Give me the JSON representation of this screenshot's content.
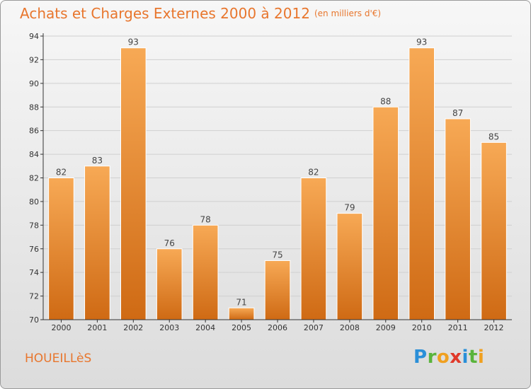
{
  "header": {
    "title": "Achats et Charges Externes 2000 à 2012",
    "subtitle": "(en milliers d'€)"
  },
  "footer": {
    "commune": "HOUEILLèS",
    "logo": [
      {
        "char": "P",
        "color": "#2a8fd8"
      },
      {
        "char": "r",
        "color": "#5ab43c"
      },
      {
        "char": "o",
        "color": "#f0a020"
      },
      {
        "char": "x",
        "color": "#e0392a"
      },
      {
        "char": "i",
        "color": "#2a8fd8"
      },
      {
        "char": "t",
        "color": "#5ab43c"
      },
      {
        "char": "i",
        "color": "#f0a020"
      }
    ]
  },
  "chart_data": {
    "type": "bar",
    "title": "Achats et Charges Externes 2000 à 2012",
    "subtitle": "(en milliers d'€)",
    "categories": [
      "2000",
      "2001",
      "2002",
      "2003",
      "2004",
      "2005",
      "2006",
      "2007",
      "2008",
      "2009",
      "2010",
      "2011",
      "2012"
    ],
    "values": [
      82,
      83,
      93,
      76,
      78,
      71,
      75,
      82,
      79,
      88,
      93,
      87,
      85
    ],
    "ylim": [
      70,
      94
    ],
    "yticks": [
      70,
      72,
      74,
      76,
      78,
      80,
      82,
      84,
      86,
      88,
      90,
      92,
      94
    ],
    "grid": true,
    "colors": {
      "bar_light": "#f7a955",
      "bar_dark": "#cf6a14",
      "text": "#e8762d",
      "axis": "#333333",
      "grid": "#d0d0d0"
    }
  }
}
